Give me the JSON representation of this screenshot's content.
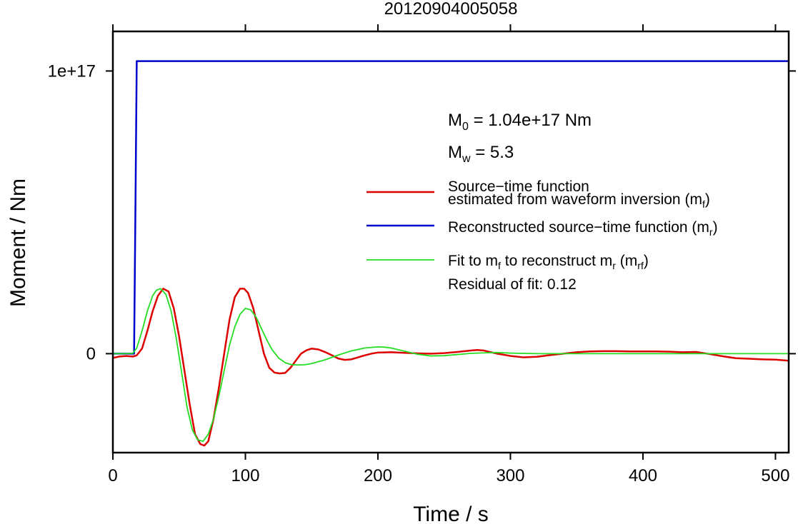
{
  "chart_data": {
    "type": "line",
    "title": "20120904005058",
    "xlabel": "Time / s",
    "ylabel": "Moment / Nm",
    "xlim": [
      0,
      510
    ],
    "ylim": [
      -3.5e+16,
      1.14e+17
    ],
    "x_ticks": [
      0,
      100,
      200,
      300,
      400,
      500
    ],
    "y_ticks": [
      {
        "value": 0,
        "label": "0"
      },
      {
        "value": 1e+17,
        "label": "1e+17"
      }
    ],
    "grid": false,
    "annotations": {
      "m0_main": "M",
      "m0_sub": "0",
      "m0_rest": " = 1.04e+17 Nm",
      "mw_main": "M",
      "mw_sub": "w",
      "mw_rest": " = 5.3",
      "residual": "Residual of fit: 0.12"
    },
    "legend": {
      "placement": "right",
      "entries": [
        {
          "series": "mf",
          "line1": "Source−time function",
          "line2_main": "estimated from waveform inversion (m",
          "line2_sub": "f",
          "line2_end": ")"
        },
        {
          "series": "mr",
          "line1_main": "Reconstructed source−time function (m",
          "line1_sub": "r",
          "line1_end": ")"
        },
        {
          "series": "mrf",
          "line1_a": "Fit to m",
          "line1_sub_a": "f",
          "line1_b": " to reconstruct m",
          "line1_sub_b": "r",
          "line1_c": " (m",
          "line1_sub_c": "rf",
          "line1_end": ")"
        }
      ]
    },
    "series": [
      {
        "key": "mf",
        "color": "#dd0000",
        "stroke": 2.5,
        "x": [
          0,
          5,
          10,
          15,
          18,
          22,
          26,
          30,
          34,
          38,
          42,
          46,
          50,
          54,
          58,
          62,
          66,
          69,
          72,
          76,
          80,
          84,
          88,
          92,
          96,
          99,
          102,
          106,
          110,
          114,
          118,
          122,
          126,
          130,
          134,
          138,
          142,
          146,
          150,
          155,
          160,
          165,
          170,
          175,
          180,
          185,
          190,
          195,
          200,
          210,
          220,
          230,
          240,
          250,
          260,
          270,
          275,
          280,
          290,
          300,
          310,
          320,
          330,
          340,
          350,
          360,
          370,
          380,
          390,
          400,
          410,
          420,
          430,
          440,
          450,
          460,
          470,
          480,
          490,
          500,
          510
        ],
        "y": [
          -1500000000000000.0,
          -1000000000000000.0,
          -800000000000000.0,
          -1000000000000000.0,
          -600000000000000.0,
          1800000000000000.0,
          8000000000000000.0,
          1.5e+16,
          2.05e+16,
          2.3e+16,
          2.2e+16,
          1.6e+16,
          6000000000000000.0,
          -6000000000000000.0,
          -1.8e+16,
          -2.85e+16,
          -3.2e+16,
          -3.25e+16,
          -3.1e+16,
          -2.3e+16,
          -1.2e+16,
          0,
          1.2e+16,
          2e+16,
          2.3e+16,
          2.3e+16,
          2.15e+16,
          1.6e+16,
          8000000000000000.0,
          0,
          -5000000000000000.0,
          -6700000000000000.0,
          -7000000000000000.0,
          -6800000000000000.0,
          -5000000000000000.0,
          -2500000000000000.0,
          0,
          1200000000000000.0,
          1800000000000000.0,
          1500000000000000.0,
          600000000000000.0,
          -500000000000000.0,
          -1700000000000000.0,
          -2200000000000000.0,
          -2000000000000000.0,
          -1300000000000000.0,
          -600000000000000.0,
          0,
          400000000000000.0,
          500000000000000.0,
          300000000000000.0,
          100000000000000.0,
          0,
          200000000000000.0,
          600000000000000.0,
          1100000000000000.0,
          1300000000000000.0,
          1100000000000000.0,
          0,
          -800000000000000.0,
          -1300000000000000.0,
          -1100000000000000.0,
          -500000000000000.0,
          0,
          500000000000000.0,
          800000000000000.0,
          900000000000000.0,
          900000000000000.0,
          800000000000000.0,
          800000000000000.0,
          800000000000000.0,
          700000000000000.0,
          500000000000000.0,
          600000000000000.0,
          -100000000000000.0,
          -900000000000000.0,
          -1600000000000000.0,
          -1800000000000000.0,
          -2000000000000000.0,
          -2100000000000000.0,
          -2500000000000000.0
        ]
      },
      {
        "key": "mr",
        "color": "#0000cc",
        "stroke": 2.5,
        "x": [
          0,
          16,
          17,
          18,
          510
        ],
        "y": [
          0,
          0,
          5e+16,
          1.035e+17,
          1.035e+17
        ]
      },
      {
        "key": "mrf",
        "color": "#22dd22",
        "stroke": 1.8,
        "x": [
          0,
          10,
          15,
          18,
          22,
          26,
          30,
          33,
          36,
          40,
          44,
          48,
          52,
          56,
          60,
          64,
          68,
          72,
          76,
          80,
          84,
          88,
          92,
          96,
          100,
          104,
          108,
          112,
          116,
          120,
          125,
          130,
          135,
          140,
          145,
          150,
          160,
          170,
          180,
          190,
          200,
          205,
          210,
          220,
          230,
          240,
          250,
          260,
          270,
          280,
          290,
          300,
          320,
          340,
          360,
          380,
          400,
          420,
          440,
          460,
          480,
          500,
          510
        ],
        "y": [
          0,
          0,
          100000000000000.0,
          2000000000000000.0,
          8000000000000000.0,
          1.5e+16,
          2.05e+16,
          2.25e+16,
          2.3e+16,
          2.1e+16,
          1.5e+16,
          5000000000000000.0,
          -7000000000000000.0,
          -1.9e+16,
          -2.7e+16,
          -3.05e+16,
          -3.1e+16,
          -2.85e+16,
          -2.3e+16,
          -1.5e+16,
          -6000000000000000.0,
          3000000000000000.0,
          9500000000000000.0,
          1.4e+16,
          1.6e+16,
          1.55e+16,
          1.3e+16,
          9000000000000000.0,
          5000000000000000.0,
          1500000000000000.0,
          -1500000000000000.0,
          -3200000000000000.0,
          -3900000000000000.0,
          -4000000000000000.0,
          -3900000000000000.0,
          -3500000000000000.0,
          -2200000000000000.0,
          -500000000000000.0,
          1000000000000000.0,
          2000000000000000.0,
          2400000000000000.0,
          2300000000000000.0,
          2000000000000000.0,
          900000000000000.0,
          -200000000000000.0,
          -800000000000000.0,
          -700000000000000.0,
          -300000000000000.0,
          100000000000000.0,
          300000000000000.0,
          400000000000000.0,
          200000000000000.0,
          0,
          0,
          0,
          0,
          0,
          0,
          0,
          0,
          0,
          0,
          0
        ]
      }
    ]
  }
}
